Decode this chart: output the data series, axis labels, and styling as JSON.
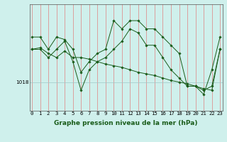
{
  "xlabel": "Graphe pression niveau de la mer (hPa)",
  "background_color": "#cff0ec",
  "line_color": "#1a5c1a",
  "grid_color_v": "#f08080",
  "grid_color_h": "#a0c8c8",
  "x_ticks": [
    0,
    1,
    2,
    3,
    4,
    5,
    6,
    7,
    8,
    9,
    10,
    11,
    12,
    13,
    14,
    15,
    16,
    17,
    18,
    19,
    20,
    21,
    22,
    23
  ],
  "y_label_value": 1018,
  "series": [
    [
      1023.5,
      1023.5,
      1022.0,
      1023.5,
      1023.2,
      1022.0,
      1019.2,
      1020.5,
      1021.5,
      1022.0,
      1025.5,
      1024.5,
      1025.5,
      1025.5,
      1024.5,
      1024.5,
      1023.5,
      1022.5,
      1021.5,
      1017.5,
      1017.5,
      1016.5,
      1019.5,
      1023.5
    ],
    [
      1022.0,
      1022.0,
      1021.0,
      1022.0,
      1023.0,
      1020.5,
      1017.0,
      1019.5,
      1020.5,
      1021.0,
      1022.0,
      1023.0,
      1024.5,
      1024.0,
      1022.5,
      1022.5,
      1021.0,
      1019.5,
      1018.5,
      1017.5,
      1017.5,
      1017.0,
      1017.5,
      1022.0
    ],
    [
      1022.0,
      1022.2,
      1021.5,
      1021.0,
      1021.8,
      1021.0,
      1021.0,
      1020.8,
      1020.5,
      1020.2,
      1020.0,
      1019.8,
      1019.5,
      1019.2,
      1019.0,
      1018.8,
      1018.5,
      1018.2,
      1018.0,
      1017.8,
      1017.5,
      1017.2,
      1017.0,
      1022.0
    ]
  ],
  "ylim": [
    1014.5,
    1027.5
  ],
  "xlim": [
    -0.3,
    23.3
  ],
  "xlabel_fontsize": 6.5,
  "tick_fontsize": 5.2
}
